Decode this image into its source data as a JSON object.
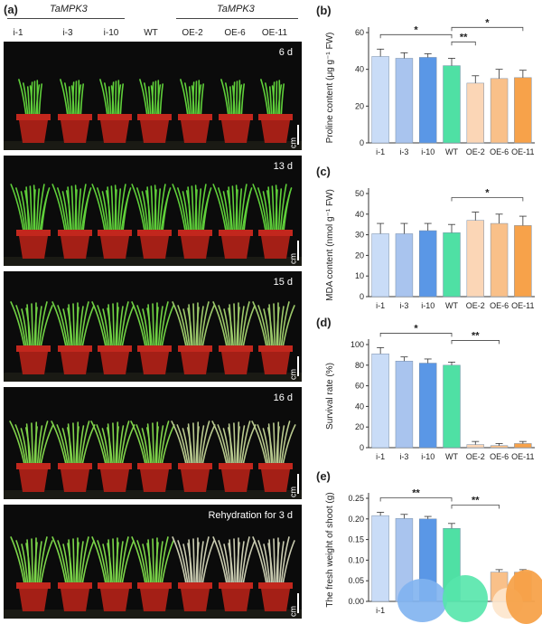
{
  "header": {
    "panel_a": "(a)",
    "genotype_left": "TaMPK3",
    "genotype_right": "TaMPK3",
    "lines": [
      "i-1",
      "i-3",
      "i-10",
      "WT",
      "OE-2",
      "OE-6",
      "OE-11"
    ]
  },
  "photos": [
    {
      "label": "6 d",
      "scale": "5 cm",
      "stage": "young"
    },
    {
      "label": "13 d",
      "scale": "5 cm",
      "stage": "grown"
    },
    {
      "label": "15 d",
      "scale": "5 cm",
      "stage": "drought1"
    },
    {
      "label": "16 d",
      "scale": "5 cm",
      "stage": "drought2"
    },
    {
      "label": "Rehydration for 3 d",
      "scale": "5 cm",
      "stage": "rehydration"
    }
  ],
  "colors": [
    "#c9dcf7",
    "#a9c4ee",
    "#5a97e6",
    "#4fe0a4",
    "#fbd6b6",
    "#f9c089",
    "#f7a24a"
  ],
  "chart_data": [
    {
      "panel": "(b)",
      "type": "bar",
      "categories": [
        "i-1",
        "i-3",
        "i-10",
        "WT",
        "OE-2",
        "OE-6",
        "OE-11"
      ],
      "values": [
        47,
        46,
        46.5,
        42,
        32.5,
        35,
        35.5
      ],
      "errors": [
        4,
        3,
        2,
        4,
        4,
        5,
        4
      ],
      "ylabel": "Proline content (μg g⁻¹ FW)",
      "ylim": [
        0,
        60
      ],
      "yticks": [
        0,
        20,
        40,
        60
      ],
      "sig": [
        {
          "from": 0,
          "to": 3,
          "label": "*",
          "level": 1
        },
        {
          "from": 3,
          "to": 4,
          "label": "**",
          "level": 0
        },
        {
          "from": 3,
          "to": 6,
          "label": "*",
          "level": 2
        }
      ]
    },
    {
      "panel": "(c)",
      "type": "bar",
      "categories": [
        "i-1",
        "i-3",
        "i-10",
        "WT",
        "OE-2",
        "OE-6",
        "OE-11"
      ],
      "values": [
        30.5,
        30.5,
        32,
        31,
        37,
        35.5,
        34.5
      ],
      "errors": [
        5,
        5,
        3.5,
        4,
        4,
        4.5,
        4.5
      ],
      "ylabel": "MDA content (nmol g⁻¹ FW)",
      "ylim": [
        0,
        50
      ],
      "yticks": [
        0,
        10,
        20,
        30,
        40,
        50
      ],
      "sig": [
        {
          "from": 3,
          "to": 6,
          "label": "*",
          "level": 1
        }
      ]
    },
    {
      "panel": "(d)",
      "type": "bar",
      "categories": [
        "i-1",
        "i-3",
        "i-10",
        "WT",
        "OE-2",
        "OE-6",
        "OE-11"
      ],
      "values": [
        91,
        84,
        82,
        80,
        3,
        2,
        4
      ],
      "errors": [
        6,
        4,
        4,
        3,
        3,
        2,
        2
      ],
      "ylabel": "Survival rate (%)",
      "ylim": [
        0,
        100
      ],
      "yticks": [
        0,
        20,
        40,
        60,
        80,
        100
      ],
      "sig": [
        {
          "from": 0,
          "to": 3,
          "label": "*",
          "level": 1
        },
        {
          "from": 3,
          "to": 5,
          "label": "**",
          "level": 0
        }
      ]
    },
    {
      "panel": "(e)",
      "type": "bar",
      "categories": [
        "i-1",
        "",
        "",
        "",
        "",
        "",
        ""
      ],
      "values": [
        0.208,
        0.201,
        0.2,
        0.177,
        0,
        0.071,
        0.071
      ],
      "errors": [
        0.008,
        0.01,
        0.006,
        0.012,
        0,
        0.006,
        0.006
      ],
      "ylabel": "The fresh weight of shoot (g)",
      "ylim": [
        0,
        0.25
      ],
      "yticks": [
        0.0,
        0.05,
        0.1,
        0.15,
        0.2,
        0.25
      ],
      "sig": [
        {
          "from": 0,
          "to": 3,
          "label": "**",
          "level": 1
        },
        {
          "from": 3,
          "to": 5,
          "label": "**",
          "level": 0
        }
      ]
    }
  ]
}
